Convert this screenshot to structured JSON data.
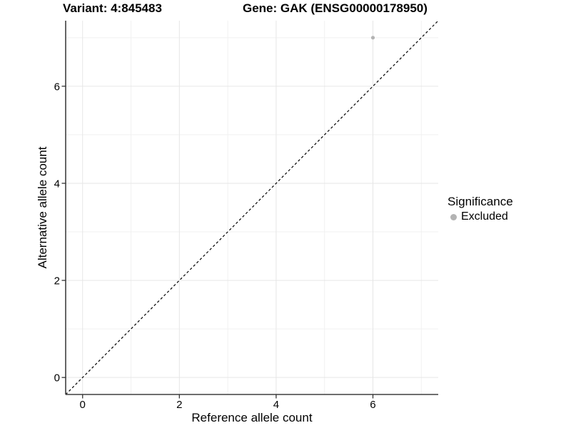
{
  "chart_data": {
    "type": "scatter",
    "title_left": "Variant: 4:845483",
    "title_right": "Gene: GAK (ENSG00000178950)",
    "xlabel": "Reference allele count",
    "ylabel": "Alternative allele count",
    "xlim": [
      -0.35,
      7.35
    ],
    "ylim": [
      -0.35,
      7.35
    ],
    "x_ticks": [
      0,
      2,
      4,
      6
    ],
    "y_ticks": [
      0,
      2,
      4,
      6
    ],
    "x_minor_gridlines": [
      1,
      3,
      5,
      7
    ],
    "y_minor_gridlines": [
      1,
      3,
      5,
      7
    ],
    "grid": true,
    "reference_line": {
      "type": "identity y=x",
      "style": "dashed",
      "color": "#000000"
    },
    "series": [
      {
        "name": "Excluded",
        "color": "#b3b3b3",
        "points": [
          {
            "x": 6,
            "y": 7
          }
        ]
      }
    ],
    "legend": {
      "title": "Significance",
      "position": "right",
      "items": [
        {
          "label": "Excluded",
          "color": "#b3b3b3"
        }
      ]
    },
    "colors": {
      "background": "#ffffff",
      "grid_major": "#e6e6e6",
      "grid_minor": "#f1f1f1",
      "axis_line": "#3f3f3f",
      "tick_mark": "#333333",
      "tick_label": "#000000"
    }
  }
}
